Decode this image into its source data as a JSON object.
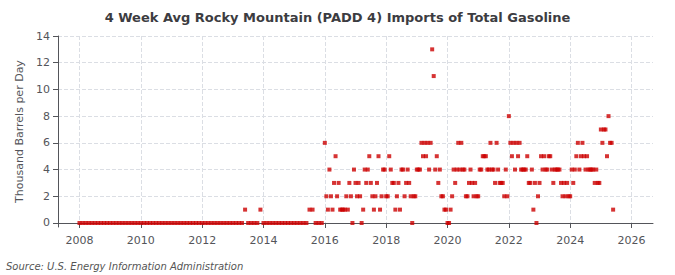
{
  "chart_data": {
    "type": "scatter",
    "title": "4 Week Avg Rocky Mountain (PADD 4) Imports of Total Gasoline",
    "ylabel": "Thousand Barrels per Day",
    "annotations": [
      "Source: U.S. Energy Information Administration"
    ],
    "color": "#cc0000",
    "marker": "square",
    "grid": true,
    "xlim": [
      2007.3,
      2026.7
    ],
    "xticks": [
      2008,
      2010,
      2012,
      2014,
      2016,
      2018,
      2020,
      2022,
      2024,
      2026
    ],
    "ylim": [
      -0.3,
      14
    ],
    "yticks": [
      0,
      2,
      4,
      6,
      8,
      10,
      12,
      14
    ],
    "x": [
      2008.0,
      2008.1,
      2008.2,
      2008.3,
      2008.4,
      2008.5,
      2008.6,
      2008.7,
      2008.8,
      2008.9,
      2009.0,
      2009.1,
      2009.2,
      2009.3,
      2009.4,
      2009.5,
      2009.6,
      2009.7,
      2009.8,
      2009.9,
      2010.0,
      2010.1,
      2010.2,
      2010.3,
      2010.4,
      2010.5,
      2010.6,
      2010.7,
      2010.8,
      2010.9,
      2011.0,
      2011.1,
      2011.2,
      2011.3,
      2011.4,
      2011.5,
      2011.6,
      2011.7,
      2011.8,
      2011.9,
      2012.0,
      2012.1,
      2012.2,
      2012.3,
      2012.4,
      2012.5,
      2012.6,
      2012.7,
      2012.8,
      2012.9,
      2013.0,
      2013.1,
      2013.2,
      2013.3,
      2013.4,
      2013.5,
      2013.6,
      2013.7,
      2013.8,
      2013.9,
      2014.0,
      2014.1,
      2014.2,
      2014.3,
      2014.4,
      2014.5,
      2014.6,
      2014.7,
      2014.8,
      2014.9,
      2015.0,
      2015.1,
      2015.2,
      2015.3,
      2015.4,
      2015.5,
      2015.6,
      2015.7,
      2015.8,
      2015.9,
      2016.0,
      2016.05,
      2016.1,
      2016.15,
      2016.2,
      2016.25,
      2016.3,
      2016.35,
      2016.4,
      2016.45,
      2016.5,
      2016.55,
      2016.6,
      2016.65,
      2016.7,
      2016.75,
      2016.8,
      2016.85,
      2016.9,
      2016.95,
      2017.0,
      2017.05,
      2017.1,
      2017.15,
      2017.2,
      2017.25,
      2017.3,
      2017.35,
      2017.4,
      2017.45,
      2017.5,
      2017.55,
      2017.6,
      2017.65,
      2017.7,
      2017.75,
      2017.8,
      2017.85,
      2017.9,
      2017.95,
      2018.0,
      2018.05,
      2018.1,
      2018.15,
      2018.2,
      2018.25,
      2018.3,
      2018.35,
      2018.4,
      2018.45,
      2018.5,
      2018.55,
      2018.6,
      2018.65,
      2018.7,
      2018.75,
      2018.8,
      2018.85,
      2018.9,
      2018.95,
      2019.0,
      2019.05,
      2019.1,
      2019.15,
      2019.2,
      2019.25,
      2019.3,
      2019.35,
      2019.4,
      2019.45,
      2019.5,
      2019.55,
      2019.6,
      2019.65,
      2019.7,
      2019.75,
      2019.8,
      2019.85,
      2019.9,
      2019.95,
      2020.0,
      2020.05,
      2020.1,
      2020.15,
      2020.2,
      2020.25,
      2020.3,
      2020.35,
      2020.4,
      2020.45,
      2020.5,
      2020.55,
      2020.6,
      2020.65,
      2020.7,
      2020.75,
      2020.8,
      2020.85,
      2020.9,
      2020.95,
      2021.0,
      2021.05,
      2021.1,
      2021.15,
      2021.2,
      2021.25,
      2021.3,
      2021.35,
      2021.4,
      2021.45,
      2021.5,
      2021.55,
      2021.6,
      2021.65,
      2021.7,
      2021.75,
      2021.8,
      2021.85,
      2021.9,
      2021.95,
      2022.0,
      2022.05,
      2022.1,
      2022.15,
      2022.2,
      2022.25,
      2022.3,
      2022.35,
      2022.4,
      2022.45,
      2022.5,
      2022.55,
      2022.6,
      2022.65,
      2022.7,
      2022.75,
      2022.8,
      2022.85,
      2022.9,
      2022.95,
      2023.0,
      2023.05,
      2023.1,
      2023.15,
      2023.2,
      2023.25,
      2023.3,
      2023.35,
      2023.4,
      2023.45,
      2023.5,
      2023.55,
      2023.6,
      2023.65,
      2023.7,
      2023.75,
      2023.8,
      2023.85,
      2023.9,
      2023.95,
      2024.0,
      2024.05,
      2024.1,
      2024.15,
      2024.2,
      2024.25,
      2024.3,
      2024.35,
      2024.4,
      2024.45,
      2024.5,
      2024.55,
      2024.6,
      2024.65,
      2024.7,
      2024.75,
      2024.8,
      2024.85,
      2024.9,
      2024.95,
      2025.0,
      2025.05,
      2025.1,
      2025.15,
      2025.2,
      2025.25,
      2025.3,
      2025.35,
      2025.4
    ],
    "values": [
      0,
      0,
      0,
      0,
      0,
      0,
      0,
      0,
      0,
      0,
      0,
      0,
      0,
      0,
      0,
      0,
      0,
      0,
      0,
      0,
      0,
      0,
      0,
      0,
      0,
      0,
      0,
      0,
      0,
      0,
      0,
      0,
      0,
      0,
      0,
      0,
      0,
      0,
      0,
      0,
      0,
      0,
      0,
      0,
      0,
      0,
      0,
      0,
      0,
      0,
      0,
      0,
      0,
      0,
      1,
      0,
      0,
      0,
      0,
      1,
      0,
      0,
      0,
      0,
      0,
      0,
      0,
      0,
      0,
      0,
      0,
      0,
      0,
      0,
      0,
      1,
      1,
      0,
      0,
      0,
      6,
      2,
      1,
      4,
      2,
      1,
      3,
      5,
      2,
      3,
      1,
      1,
      1,
      1,
      2,
      1,
      3,
      2,
      0,
      4,
      3,
      2,
      3,
      2,
      0,
      1,
      4,
      3,
      4,
      5,
      3,
      2,
      1,
      2,
      3,
      5,
      1,
      2,
      4,
      4,
      2,
      2,
      5,
      4,
      3,
      3,
      1,
      2,
      3,
      1,
      4,
      4,
      2,
      3,
      4,
      3,
      2,
      0,
      2,
      2,
      4,
      4,
      4,
      6,
      5,
      6,
      5,
      6,
      4,
      6,
      13,
      11,
      4,
      5,
      3,
      4,
      2,
      2,
      1,
      1,
      0,
      0,
      1,
      2,
      4,
      3,
      4,
      6,
      4,
      6,
      4,
      4,
      2,
      2,
      3,
      4,
      3,
      2,
      3,
      2,
      2,
      4,
      4,
      5,
      5,
      5,
      4,
      4,
      6,
      4,
      4,
      3,
      6,
      4,
      3,
      3,
      3,
      2,
      4,
      2,
      8,
      6,
      5,
      6,
      4,
      6,
      5,
      6,
      4,
      4,
      4,
      4,
      5,
      3,
      3,
      4,
      1,
      3,
      0,
      2,
      3,
      5,
      4,
      5,
      4,
      4,
      5,
      5,
      4,
      3,
      4,
      4,
      4,
      4,
      3,
      2,
      3,
      2,
      3,
      2,
      2,
      4,
      3,
      4,
      5,
      6,
      4,
      5,
      6,
      5,
      4,
      5,
      4,
      4,
      4,
      4,
      3,
      4,
      3,
      3,
      7,
      6,
      7,
      7,
      5,
      8,
      6,
      6,
      1
    ]
  }
}
